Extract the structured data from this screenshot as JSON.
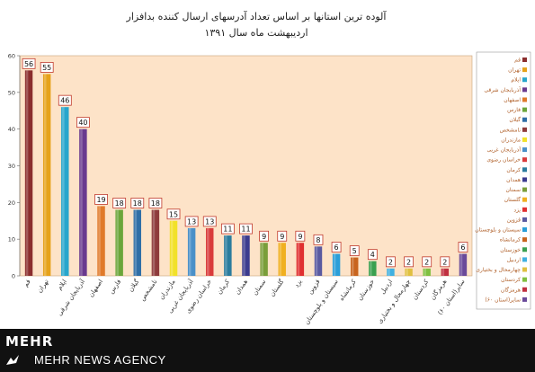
{
  "chart_data": {
    "type": "bar",
    "title": "آلوده ترین استانها بر اساس تعداد آدرسهای ارسال کننده بدافزار",
    "subtitle": "اردیبهشت ماه سال ۱۳۹۱",
    "ylim": [
      0,
      60
    ],
    "yticks": [
      0,
      10,
      20,
      30,
      40,
      50,
      60
    ],
    "grid": false,
    "legend_position": "right",
    "categories": [
      "قم",
      "تهران",
      "ایلام",
      "آذربایجان شرقی",
      "اصفهان",
      "فارس",
      "گیلان",
      "نامشخص",
      "مازندران",
      "آذربایجان غربی",
      "خراسان رضوی",
      "کرمان",
      "همدان",
      "سمنان",
      "گلستان",
      "یزد",
      "قزوین",
      "سیستان و بلوچستان",
      "کرمانشاه",
      "خوزستان",
      "اردبیل",
      "چهارمحال و بختیاری",
      "کردستان",
      "هرمزگان",
      "(استان ۶۰)سایر"
    ],
    "values": [
      56,
      55,
      46,
      40,
      19,
      18,
      18,
      18,
      15,
      13,
      13,
      11,
      11,
      9,
      9,
      9,
      8,
      6,
      5,
      4,
      2,
      2,
      2,
      2,
      6
    ],
    "colors": [
      "#8b2e2e",
      "#e6a21a",
      "#27a6cc",
      "#6a3a8f",
      "#e07a2a",
      "#6ba63a",
      "#2f6ea6",
      "#8e3b3b",
      "#f2e12a",
      "#4a90c8",
      "#d93b3b",
      "#2b7c9e",
      "#3b3b8f",
      "#7a9e3a",
      "#f0b020",
      "#e03030",
      "#5a5aa0",
      "#2a9ed8",
      "#c8641e",
      "#3aa050",
      "#40b0e0",
      "#e0c040",
      "#80c040",
      "#c03040",
      "#6a4a9a"
    ],
    "legend_labels": [
      "قم",
      "تهران",
      "ایلام",
      "آذربایجان شرقی",
      "اصفهان",
      "فارس",
      "گیلان",
      "نامشخص",
      "مازندران",
      "آذربایجان غربی",
      "خراسان رضوی",
      "کرمان",
      "همدان",
      "سمنان",
      "گلستان",
      "یزد",
      "قزوین",
      "سیستان و بلوچستان",
      "کرمانشاه",
      "خوزستان",
      "اردبیل",
      "چهارمحال و بختیاری",
      "کردستان",
      "هرمزگان",
      "(استان ۶۰)سایر"
    ]
  },
  "branding": {
    "logo": "MEHR",
    "agency": "MEHR NEWS AGENCY",
    "icon": "mehr-bird-icon"
  }
}
